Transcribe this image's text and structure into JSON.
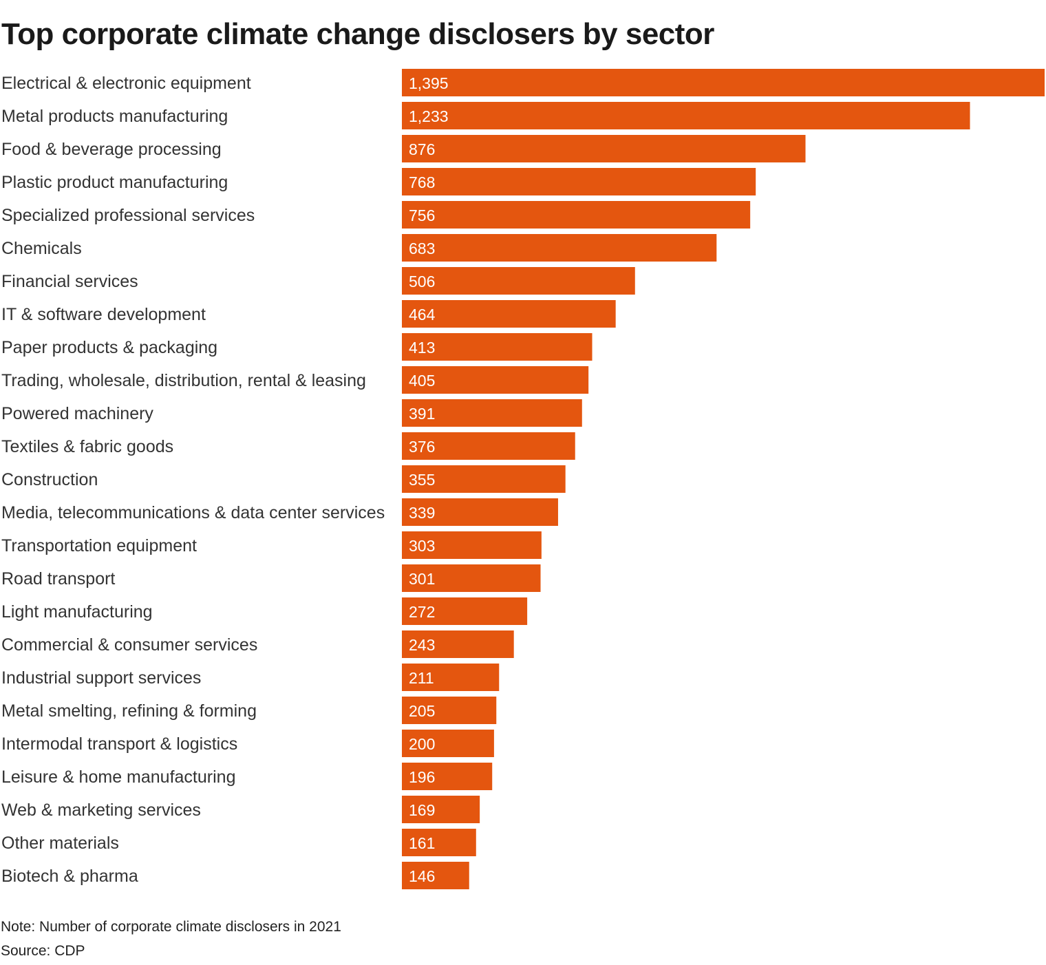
{
  "chart_data": {
    "type": "bar",
    "orientation": "horizontal",
    "title": "Top corporate climate change disclosers by sector",
    "xlabel": "",
    "ylabel": "",
    "xlim": [
      0,
      1395
    ],
    "grid": false,
    "legend": "none",
    "color": "#E4560F",
    "categories": [
      "Electrical & electronic equipment",
      "Metal products manufacturing",
      "Food & beverage processing",
      "Plastic product manufacturing",
      "Specialized professional services",
      "Chemicals",
      "Financial services",
      "IT & software development",
      "Paper products & packaging",
      "Trading, wholesale, distribution, rental & leasing",
      "Powered machinery",
      "Textiles & fabric goods",
      "Construction",
      "Media, telecommunications & data center services",
      "Transportation equipment",
      "Road transport",
      "Light manufacturing",
      "Commercial & consumer services",
      "Industrial support services",
      "Metal smelting, refining & forming",
      "Intermodal transport & logistics",
      "Leisure & home manufacturing",
      "Web & marketing services",
      "Other materials",
      "Biotech & pharma"
    ],
    "values": [
      1395,
      1233,
      876,
      768,
      756,
      683,
      506,
      464,
      413,
      405,
      391,
      376,
      355,
      339,
      303,
      301,
      272,
      243,
      211,
      205,
      200,
      196,
      169,
      161,
      146
    ],
    "value_labels": [
      "1,395",
      "1,233",
      "876",
      "768",
      "756",
      "683",
      "506",
      "464",
      "413",
      "405",
      "391",
      "376",
      "355",
      "339",
      "303",
      "301",
      "272",
      "243",
      "211",
      "205",
      "200",
      "196",
      "169",
      "161",
      "146"
    ],
    "note": "Note: Number of corporate climate disclosers in 2021",
    "source": "Source: CDP"
  }
}
